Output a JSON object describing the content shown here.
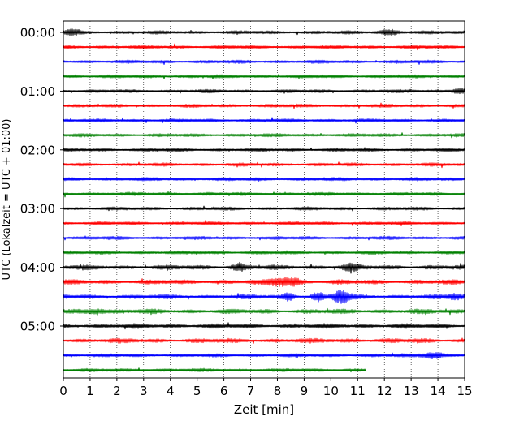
{
  "chart_data": {
    "type": "line",
    "xlabel": "Zeit  [min]",
    "ylabel": "UTC (Lokalzeit = UTC + 01:00)",
    "xlim": [
      0,
      15
    ],
    "xticks": [
      "0",
      "1",
      "2",
      "3",
      "4",
      "5",
      "6",
      "7",
      "8",
      "9",
      "10",
      "11",
      "12",
      "13",
      "14",
      "15"
    ],
    "yticks": [
      "00:00",
      "01:00",
      "02:00",
      "03:00",
      "04:00",
      "05:00"
    ],
    "rows_per_hour": 4,
    "row_duration_min": 15,
    "grid": "vertical dotted",
    "trace_colors": [
      "#000000",
      "#ff0000",
      "#0000ff",
      "#008000"
    ],
    "traces": [
      {
        "start": "00:00",
        "end_min": 15
      },
      {
        "start": "00:15",
        "end_min": 15
      },
      {
        "start": "00:30",
        "end_min": 15
      },
      {
        "start": "00:45",
        "end_min": 15
      },
      {
        "start": "01:00",
        "end_min": 15
      },
      {
        "start": "01:15",
        "end_min": 15
      },
      {
        "start": "01:30",
        "end_min": 15
      },
      {
        "start": "01:45",
        "end_min": 15
      },
      {
        "start": "02:00",
        "end_min": 15
      },
      {
        "start": "02:15",
        "end_min": 15
      },
      {
        "start": "02:30",
        "end_min": 15
      },
      {
        "start": "02:45",
        "end_min": 15
      },
      {
        "start": "03:00",
        "end_min": 15
      },
      {
        "start": "03:15",
        "end_min": 15
      },
      {
        "start": "03:30",
        "end_min": 15
      },
      {
        "start": "03:45",
        "end_min": 15
      },
      {
        "start": "04:00",
        "end_min": 15
      },
      {
        "start": "04:15",
        "end_min": 15
      },
      {
        "start": "04:30",
        "end_min": 15
      },
      {
        "start": "04:45",
        "end_min": 15
      },
      {
        "start": "05:00",
        "end_min": 15
      },
      {
        "start": "05:15",
        "end_min": 15
      },
      {
        "start": "05:30",
        "end_min": 15
      },
      {
        "start": "05:45",
        "end_min": 11.3
      }
    ]
  }
}
